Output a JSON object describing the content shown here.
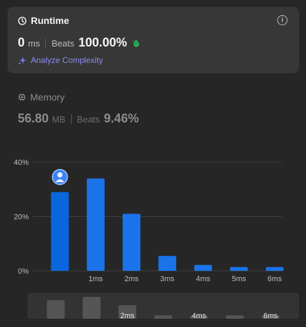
{
  "runtime": {
    "title": "Runtime",
    "value": "0",
    "unit": "ms",
    "beats_label": "Beats",
    "beats_value": "100.00%",
    "analyze_label": "Analyze Complexity",
    "info_glyph": "i"
  },
  "memory": {
    "title": "Memory",
    "value": "56.80",
    "unit": "MB",
    "beats_label": "Beats",
    "beats_value": "9.46%"
  },
  "colors": {
    "accent_bar": "#1a73e8",
    "highlight_bar": "#0a66dc",
    "analyze_text": "#8b8cf4",
    "clap_green": "#2cbb5d"
  },
  "chart_data": {
    "type": "bar",
    "categories": [
      "",
      "1ms",
      "2ms",
      "3ms",
      "4ms",
      "5ms",
      "6ms"
    ],
    "values": [
      29,
      34,
      21,
      5.5,
      2.2,
      1.4,
      1.4
    ],
    "y_ticks": [
      "40%",
      "20%",
      "0%"
    ],
    "ylim": [
      0,
      40
    ],
    "highlight_index": 0,
    "grid": true,
    "mini_categories": [
      "",
      "",
      "2ms",
      "",
      "4ms",
      "",
      "6ms"
    ],
    "mini_values": [
      29,
      34,
      21,
      5.5,
      2.2,
      1.4,
      1.4
    ]
  }
}
